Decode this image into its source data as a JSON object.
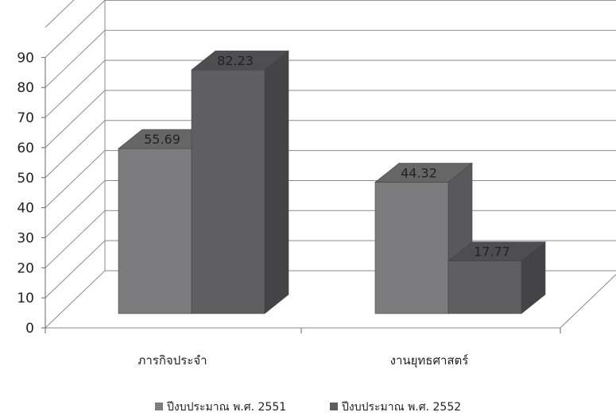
{
  "chart_data": {
    "type": "bar",
    "categories": [
      "ภารกิจประจำ",
      "งานยุทธศาสตร์"
    ],
    "series": [
      {
        "name": "ปีงบประมาณ พ.ศ. 2551",
        "values": [
          55.69,
          44.32
        ],
        "color": "#7c7c7e"
      },
      {
        "name": "ปีงบประมาณ พ.ศ. 2552",
        "values": [
          82.23,
          17.77
        ],
        "color": "#5f5f61"
      }
    ],
    "data_labels": [
      "55.69",
      "82.23",
      "44.32",
      "17.77"
    ],
    "yticks": [
      "0",
      "10",
      "20",
      "30",
      "40",
      "50",
      "60",
      "70",
      "80",
      "90"
    ],
    "ylim": [
      0,
      100
    ],
    "grid": true,
    "legend_position": "bottom",
    "three_d": true
  }
}
